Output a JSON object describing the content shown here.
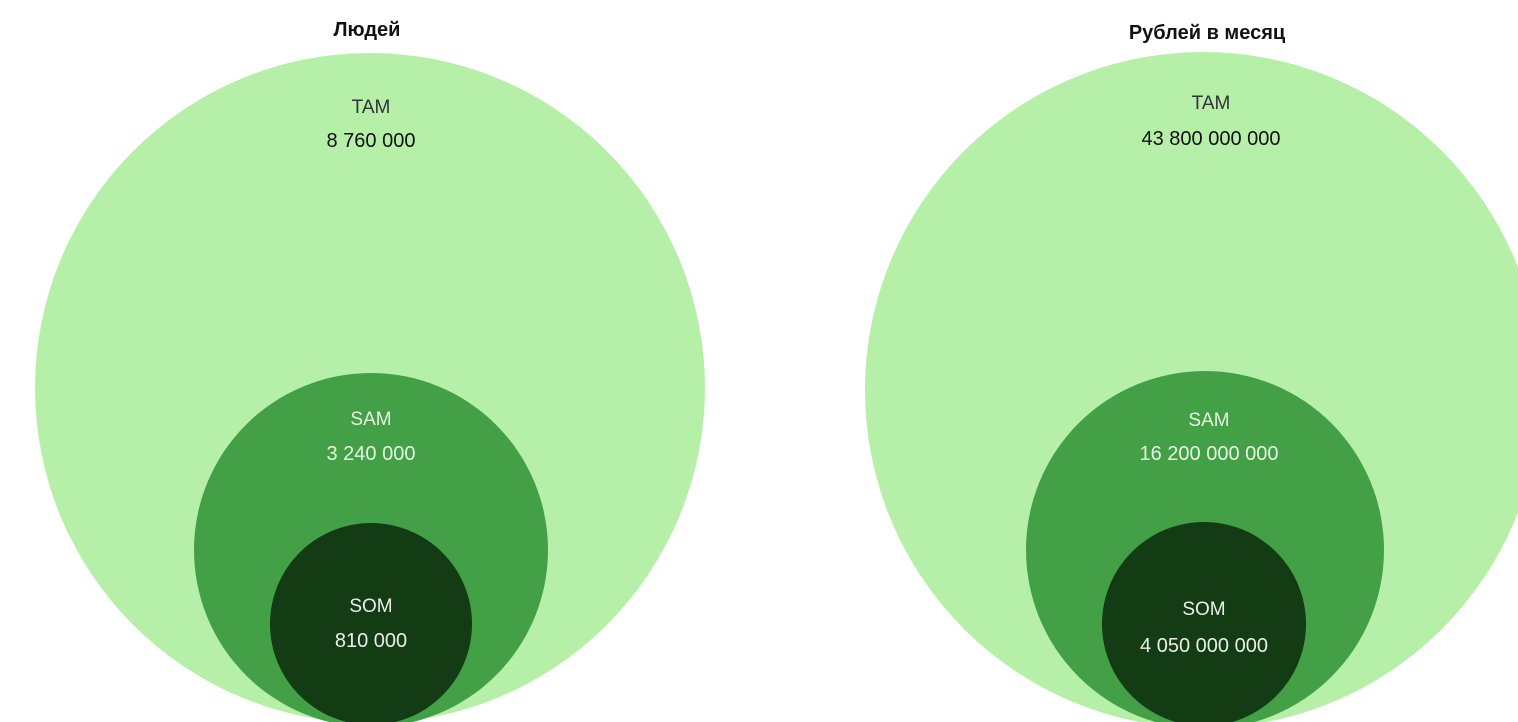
{
  "colors": {
    "tam": "#b6f0a8",
    "sam": "#43a047",
    "som": "#133b14",
    "tam_text": "#333333",
    "tam_value_text": "#111111",
    "sam_text": "#e6f5e2",
    "som_text": "#e8efe8"
  },
  "diagrams": [
    {
      "title": "Людей",
      "tam": {
        "name": "TAM",
        "value": "8 760 000"
      },
      "sam": {
        "name": "SAM",
        "value": "3 240 000"
      },
      "som": {
        "name": "SOM",
        "value": "810 000"
      }
    },
    {
      "title": "Рублей в месяц",
      "tam": {
        "name": "TAM",
        "value": "43 800 000 000"
      },
      "sam": {
        "name": "SAM",
        "value": "16 200 000 000"
      },
      "som": {
        "name": "SOM",
        "value": "4 050 000 000"
      }
    }
  ]
}
